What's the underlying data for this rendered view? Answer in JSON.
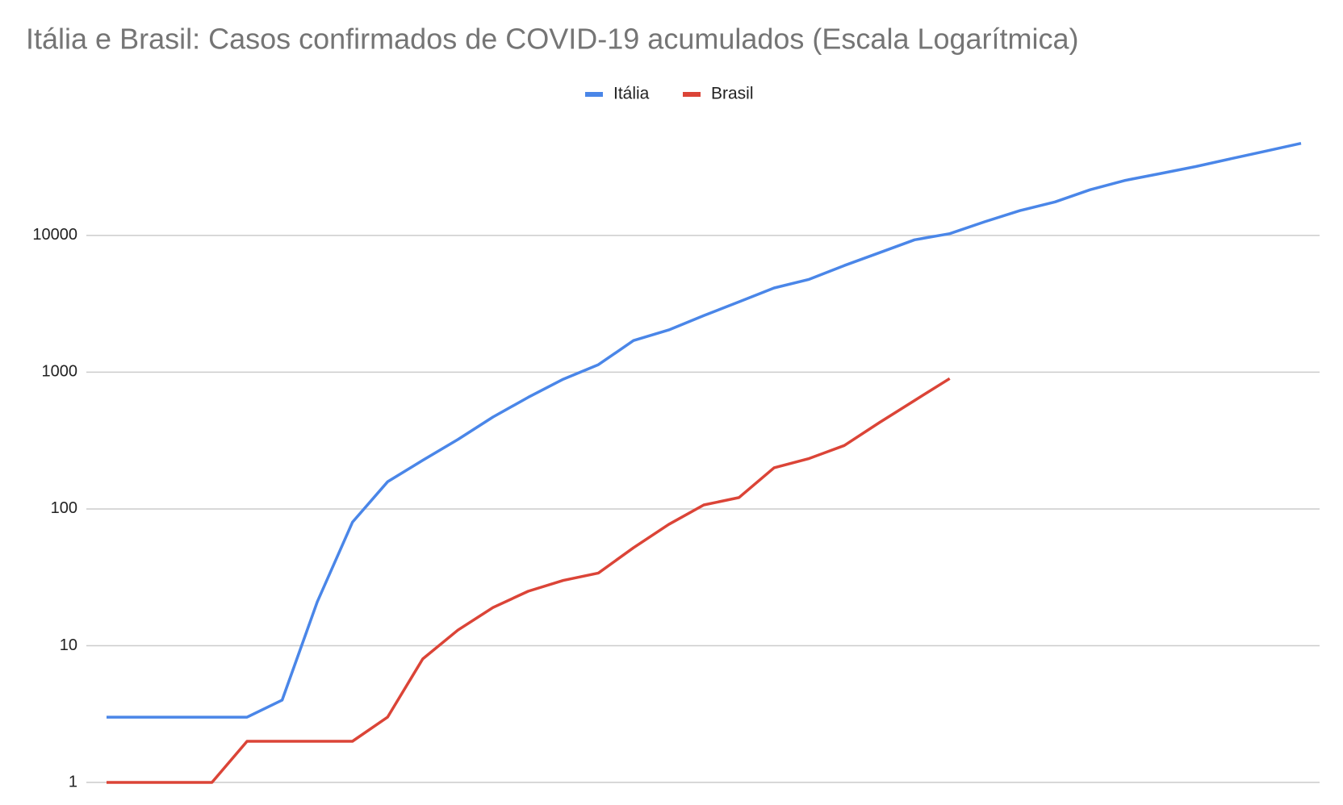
{
  "chart_data": {
    "type": "line",
    "title": "Itália e Brasil: Casos confirmados de COVID-19 acumulados (Escala Logarítmica)",
    "categories": [
      null,
      null,
      null,
      null,
      null,
      null,
      null,
      null,
      null,
      null,
      null,
      null,
      null,
      null,
      null,
      null,
      null,
      null,
      null,
      null,
      null,
      null,
      null,
      null,
      null,
      null,
      null,
      null,
      null,
      null,
      null,
      null,
      null,
      null,
      null
    ],
    "series": [
      {
        "name": "Itália",
        "color": "#4a86e8",
        "values": [
          3,
          3,
          3,
          3,
          3,
          4,
          21,
          80,
          158,
          227,
          322,
          470,
          655,
          889,
          1135,
          1705,
          2036,
          2594,
          3270,
          4130,
          4775,
          6030,
          7480,
          9290,
          10300,
          12600,
          15200,
          17600,
          21600,
          25300,
          28400,
          31900,
          36400,
          41400,
          47200
        ]
      },
      {
        "name": "Brasil",
        "color": "#db4437",
        "values": [
          1,
          1,
          1,
          1,
          2,
          2,
          2,
          2,
          3,
          8,
          13,
          19,
          25,
          30,
          34,
          52,
          77,
          107,
          121,
          200,
          234,
          291,
          428,
          621,
          899,
          null,
          null,
          null,
          null,
          null,
          null,
          null,
          null,
          null,
          null
        ]
      }
    ],
    "ylim": [
      1,
      60000
    ],
    "yticks": [
      1,
      10,
      100,
      1000,
      10000
    ],
    "log_y": true,
    "grid": true,
    "legend": "top"
  }
}
